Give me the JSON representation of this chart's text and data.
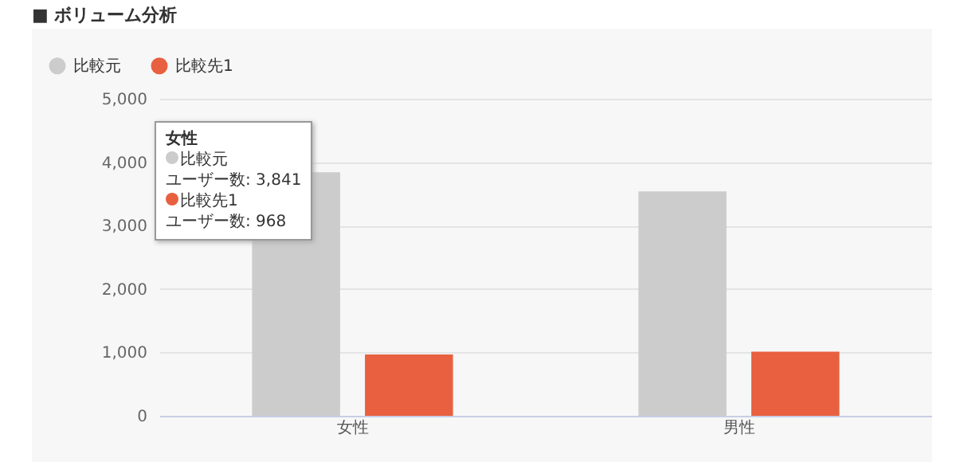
{
  "chart_data": {
    "type": "bar",
    "title": "■ ボリューム分析",
    "categories": [
      "女性",
      "男性"
    ],
    "series": [
      {
        "name": "比較元",
        "color": "#cccccc",
        "values": [
          3841,
          3540
        ]
      },
      {
        "name": "比較先1",
        "color": "#e8603f",
        "values": [
          968,
          1010
        ]
      }
    ],
    "ylim": [
      0,
      5000
    ],
    "yticks": [
      0,
      {
        "value": 1000,
        "label": "1,000"
      },
      {
        "value": 2000,
        "label": "2,000"
      },
      {
        "value": 3000,
        "label": "3,000"
      },
      {
        "value": 4000,
        "label": "4,000"
      },
      {
        "value": 5000,
        "label": "5,000"
      }
    ],
    "grid": "y",
    "legend": "top left",
    "annotations": [
      "女性",
      "比較元",
      "ユーザー数: 3,841",
      "比較先1",
      "ユーザー数: 968"
    ]
  }
}
